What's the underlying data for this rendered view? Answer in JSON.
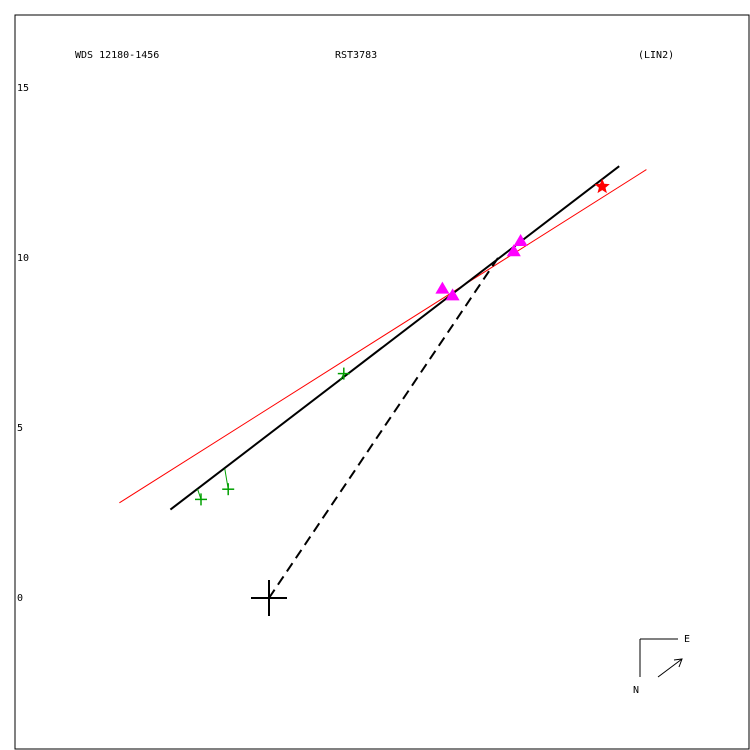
{
  "header": {
    "left": "WDS 12180-1456",
    "center": "RST3783",
    "right": "(LIN2)"
  },
  "compass": {
    "east": "E",
    "north": "N"
  },
  "chart_data": {
    "type": "scatter",
    "title": "",
    "xlabel": "",
    "ylabel": "",
    "yticks": [
      "15",
      "10",
      "5",
      "0"
    ],
    "ytick_values": [
      15,
      10,
      5,
      0
    ],
    "colors": {
      "frame": "#000000",
      "fit_line": "#000000",
      "reference_line": "#ff0000",
      "plus_points": "#00a000",
      "triangle_points": "#ff00ff",
      "star_point": "#ff0000"
    },
    "origin": {
      "x": 0,
      "y": 0
    },
    "fit_line": {
      "from": [
        -2.9,
        2.6
      ],
      "to": [
        10.3,
        12.7
      ]
    },
    "reference_line": {
      "from": [
        -4.4,
        2.8
      ],
      "to": [
        11.1,
        12.6
      ]
    },
    "dashed_line": {
      "from": [
        0,
        0
      ],
      "to": [
        6.8,
        10.1
      ]
    },
    "plus_points": [
      {
        "x": -2.0,
        "y": 2.9,
        "fx": -2.1,
        "fy": 3.2
      },
      {
        "x": -1.2,
        "y": 3.2,
        "fx": -1.3,
        "fy": 3.8
      },
      {
        "x": 2.2,
        "y": 6.6,
        "fx": 2.1,
        "fy": 6.4
      }
    ],
    "triangle_points": [
      {
        "x": 5.1,
        "y": 9.1
      },
      {
        "x": 5.4,
        "y": 8.9
      },
      {
        "x": 7.2,
        "y": 10.2
      },
      {
        "x": 7.4,
        "y": 10.5
      }
    ],
    "star_point": {
      "x": 9.8,
      "y": 12.1
    }
  }
}
